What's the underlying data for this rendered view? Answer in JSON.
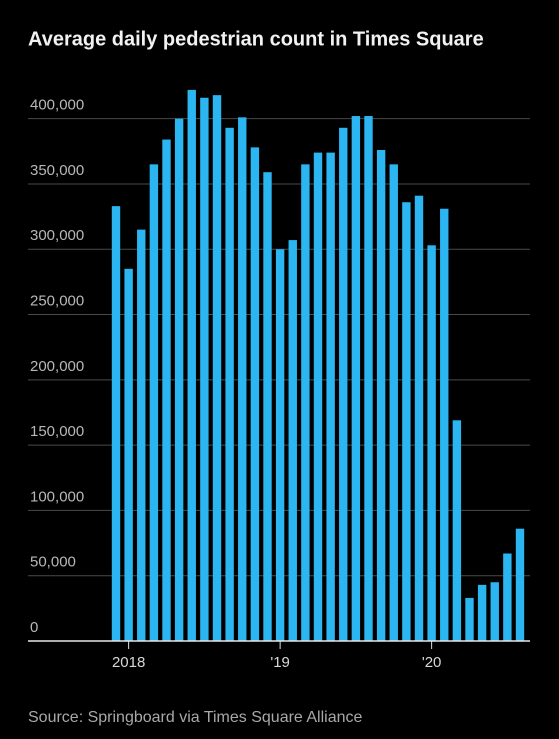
{
  "chart_data": {
    "type": "bar",
    "title": "Average daily pedestrian count in Times Square",
    "source": "Source: Springboard via Times Square Alliance",
    "categories": [
      null,
      "2018",
      null,
      null,
      null,
      null,
      null,
      null,
      null,
      null,
      null,
      null,
      null,
      "'19",
      null,
      null,
      null,
      null,
      null,
      null,
      null,
      null,
      null,
      null,
      null,
      "'20",
      null,
      null,
      null,
      null,
      null,
      null,
      null
    ],
    "values": [
      333000,
      285000,
      315000,
      365000,
      384000,
      400000,
      422000,
      416000,
      418000,
      393000,
      401000,
      378000,
      359000,
      300000,
      307000,
      365000,
      374000,
      374000,
      393000,
      402000,
      402000,
      376000,
      365000,
      336000,
      341000,
      303000,
      331000,
      169000,
      33000,
      43000,
      45000,
      67000,
      86000
    ],
    "color": "#2bb5f1",
    "ylim": [
      0,
      425000
    ],
    "yticks": [
      0,
      {
        "value": 50000,
        "label": "50,000"
      },
      {
        "value": 100000,
        "label": "100,000"
      },
      {
        "value": 150000,
        "label": "150,000"
      },
      {
        "value": 200000,
        "label": "200,000"
      },
      {
        "value": 250000,
        "label": "250,000"
      },
      {
        "value": 300000,
        "label": "300,000"
      },
      {
        "value": 350000,
        "label": "350,000"
      },
      {
        "value": 400000,
        "label": "400,000"
      }
    ],
    "grid": true
  }
}
